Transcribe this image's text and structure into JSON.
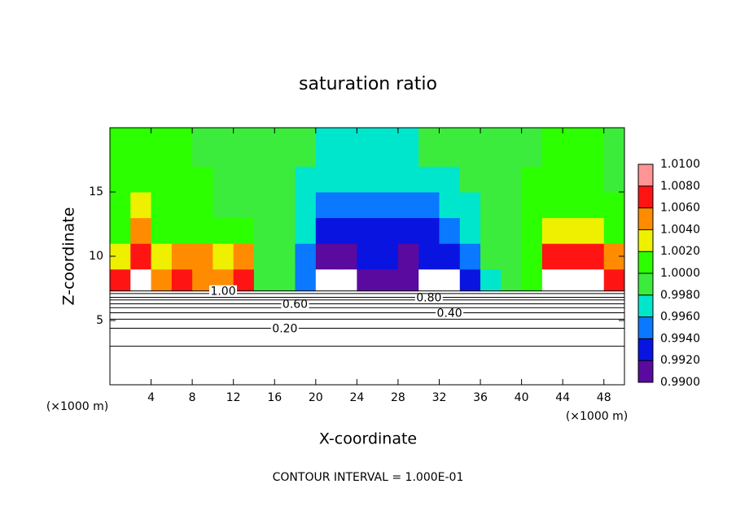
{
  "chart_data": {
    "type": "contour",
    "title": "saturation ratio",
    "x_label": "X-coordinate",
    "y_label": "Z-coordinate",
    "x_unit_left": "(×1000 m)",
    "x_unit_right": "(×1000 m)",
    "footnote": "CONTOUR INTERVAL = 1.000E-01",
    "xlim": [
      0,
      50
    ],
    "ylim": [
      0,
      20
    ],
    "xticks": [
      4,
      8,
      12,
      16,
      20,
      24,
      28,
      32,
      36,
      40,
      44,
      48
    ],
    "yticks": [
      5,
      10,
      15
    ],
    "colorbar": {
      "lim": [
        0.99,
        1.01
      ],
      "ticks": [
        {
          "value": 0.99,
          "label": "0.9900"
        },
        {
          "value": 0.992,
          "label": "0.9920"
        },
        {
          "value": 0.994,
          "label": "0.9940"
        },
        {
          "value": 0.996,
          "label": "0.9960"
        },
        {
          "value": 0.998,
          "label": "0.9980"
        },
        {
          "value": 1.0,
          "label": "1.0000"
        },
        {
          "value": 1.002,
          "label": "1.0020"
        },
        {
          "value": 1.004,
          "label": "1.0040"
        },
        {
          "value": 1.006,
          "label": "1.0060"
        },
        {
          "value": 1.008,
          "label": "1.0080"
        },
        {
          "value": 1.01,
          "label": "1.0100"
        }
      ],
      "colors": [
        "#5a0a9e",
        "#0a14e0",
        "#0a78ff",
        "#00e6cc",
        "#3cec3c",
        "#2cff00",
        "#eef000",
        "#ff8c00",
        "#ff1414",
        "#ff9494"
      ]
    },
    "field": {
      "x": [
        1,
        3,
        5,
        7,
        9,
        11,
        13,
        15,
        17,
        19,
        21,
        23,
        25,
        27,
        29,
        31,
        33,
        35,
        37,
        39,
        41,
        43,
        45,
        47,
        49
      ],
      "z": [
        8,
        10,
        12,
        14,
        16,
        18
      ],
      "values": [
        [
          1.007,
          1.012,
          1.006,
          1.007,
          1.006,
          1.006,
          1.007,
          1.0,
          0.999,
          0.995,
          0.985,
          0.985,
          0.991,
          0.991,
          0.991,
          0.988,
          0.988,
          0.993,
          0.998,
          1.0,
          1.001,
          1.012,
          1.012,
          1.012,
          1.007
        ],
        [
          1.003,
          1.007,
          1.004,
          1.005,
          1.006,
          1.004,
          1.006,
          1.0,
          0.999,
          0.996,
          0.992,
          0.992,
          0.993,
          0.993,
          0.992,
          0.993,
          0.994,
          0.995,
          0.999,
          1.0,
          1.002,
          1.007,
          1.008,
          1.008,
          1.006
        ],
        [
          1.002,
          1.006,
          1.002,
          1.001,
          1.001,
          1.001,
          1.001,
          1.0,
          0.999,
          0.997,
          0.993,
          0.993,
          0.993,
          0.993,
          0.994,
          0.994,
          0.995,
          0.997,
          0.999,
          1.0,
          1.002,
          1.004,
          1.004,
          1.003,
          1.002
        ],
        [
          1.002,
          1.004,
          1.002,
          1.001,
          1.001,
          1.0,
          1.0,
          1.0,
          0.999,
          0.998,
          0.996,
          0.995,
          0.995,
          0.995,
          0.996,
          0.996,
          0.997,
          0.998,
          0.999,
          1.0,
          1.001,
          1.002,
          1.002,
          1.001,
          1.001
        ],
        [
          1.001,
          1.002,
          1.002,
          1.001,
          1.001,
          1.0,
          1.0,
          1.0,
          0.999,
          0.998,
          0.997,
          0.997,
          0.997,
          0.997,
          0.997,
          0.998,
          0.998,
          0.999,
          0.999,
          1.0,
          1.001,
          1.001,
          1.001,
          1.001,
          1.0
        ],
        [
          1.001,
          1.001,
          1.001,
          1.001,
          1.0,
          1.0,
          1.0,
          1.0,
          0.999,
          0.999,
          0.998,
          0.998,
          0.998,
          0.998,
          0.998,
          0.999,
          0.999,
          0.999,
          1.0,
          1.0,
          1.0,
          1.001,
          1.001,
          1.001,
          1.0
        ]
      ]
    },
    "contours": [
      {
        "level": 0.1,
        "z": 3.0
      },
      {
        "level": 0.2,
        "z": 4.4,
        "label": "0.20"
      },
      {
        "level": 0.3,
        "z": 5.1
      },
      {
        "level": 0.4,
        "z": 5.6,
        "label": "0.40"
      },
      {
        "level": 0.5,
        "z": 6.0
      },
      {
        "level": 0.6,
        "z": 6.3,
        "label": "0.60"
      },
      {
        "level": 0.7,
        "z": 6.6
      },
      {
        "level": 0.8,
        "z": 6.8,
        "label": "0.80"
      },
      {
        "level": 0.9,
        "z": 7.1
      },
      {
        "level": 1.0,
        "z": 7.3,
        "label": "1.00"
      }
    ]
  }
}
